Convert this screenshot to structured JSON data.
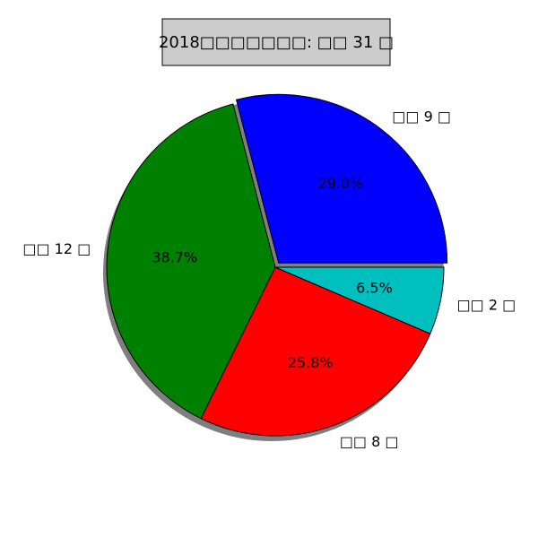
{
  "chart_data": {
    "type": "pie",
    "title": "2018□□□□□□□: □□ 31 □",
    "total": 31,
    "slices": [
      {
        "label": "□□ 9 □",
        "value": 9,
        "percent_label": "29.0%",
        "color": "#0000ff",
        "explode": true
      },
      {
        "label": "□□ 12 □",
        "value": 12,
        "percent_label": "38.7%",
        "color": "#008000",
        "explode": false
      },
      {
        "label": "□□ 8 □",
        "value": 8,
        "percent_label": "25.8%",
        "color": "#ff0000",
        "explode": false
      },
      {
        "label": "□□ 2 □",
        "value": 2,
        "percent_label": "6.5%",
        "color": "#00bfbf",
        "explode": false
      }
    ],
    "shadow": true,
    "title_box_color": "#cccccc"
  }
}
